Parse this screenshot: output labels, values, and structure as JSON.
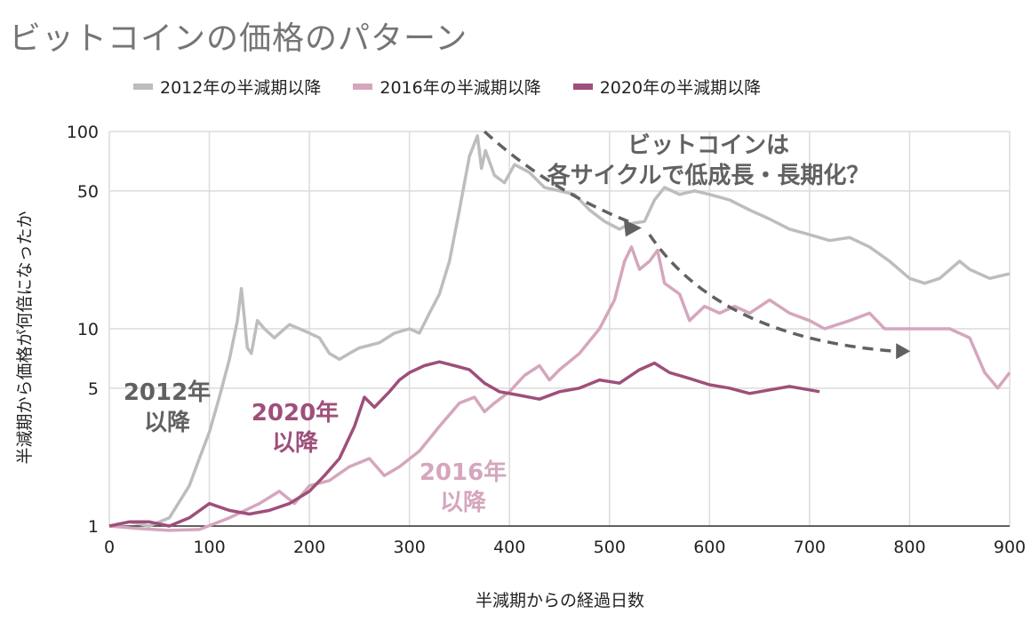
{
  "title": "ビットコインの価格のパターン",
  "legend": [
    {
      "label": "2012年の半減期以降",
      "color": "#bdbdbd"
    },
    {
      "label": "2016年の半減期以降",
      "color": "#d5a6bd"
    },
    {
      "label": "2020年の半減期以降",
      "color": "#9e4f7a"
    }
  ],
  "chart_data": {
    "type": "line",
    "title": "ビットコインの価格のパターン",
    "xlabel": "半減期からの経過日数",
    "ylabel": "半減期から価格が何倍になったか",
    "xlim": [
      0,
      900
    ],
    "ylim": [
      1,
      100
    ],
    "yscale": "log",
    "x_ticks": [
      0,
      100,
      200,
      300,
      400,
      500,
      600,
      700,
      800,
      900
    ],
    "y_ticks": [
      1,
      5,
      10,
      50,
      100
    ],
    "grid": true,
    "legend_position": "top",
    "series": [
      {
        "name": "2012年の半減期以降",
        "color": "#bdbdbd",
        "points": [
          [
            0,
            1
          ],
          [
            20,
            1.05
          ],
          [
            40,
            1.0
          ],
          [
            60,
            1.1
          ],
          [
            80,
            1.6
          ],
          [
            90,
            2.2
          ],
          [
            100,
            3.0
          ],
          [
            110,
            4.5
          ],
          [
            120,
            7
          ],
          [
            128,
            11
          ],
          [
            132,
            16
          ],
          [
            138,
            8
          ],
          [
            142,
            7.5
          ],
          [
            148,
            11
          ],
          [
            155,
            10
          ],
          [
            165,
            9
          ],
          [
            180,
            10.5
          ],
          [
            190,
            10
          ],
          [
            200,
            9.5
          ],
          [
            210,
            9
          ],
          [
            220,
            7.5
          ],
          [
            230,
            7
          ],
          [
            240,
            7.5
          ],
          [
            250,
            8
          ],
          [
            270,
            8.5
          ],
          [
            285,
            9.5
          ],
          [
            300,
            10
          ],
          [
            310,
            9.5
          ],
          [
            320,
            12
          ],
          [
            330,
            15
          ],
          [
            340,
            22
          ],
          [
            350,
            40
          ],
          [
            360,
            75
          ],
          [
            368,
            95
          ],
          [
            372,
            65
          ],
          [
            376,
            80
          ],
          [
            385,
            60
          ],
          [
            395,
            55
          ],
          [
            405,
            68
          ],
          [
            420,
            62
          ],
          [
            435,
            52
          ],
          [
            450,
            50
          ],
          [
            465,
            48
          ],
          [
            480,
            40
          ],
          [
            495,
            35
          ],
          [
            510,
            32
          ],
          [
            520,
            34
          ],
          [
            535,
            35
          ],
          [
            545,
            45
          ],
          [
            555,
            52
          ],
          [
            570,
            48
          ],
          [
            585,
            50
          ],
          [
            600,
            48
          ],
          [
            620,
            45
          ],
          [
            640,
            40
          ],
          [
            660,
            36
          ],
          [
            680,
            32
          ],
          [
            700,
            30
          ],
          [
            720,
            28
          ],
          [
            740,
            29
          ],
          [
            760,
            26
          ],
          [
            780,
            22
          ],
          [
            800,
            18
          ],
          [
            815,
            17
          ],
          [
            830,
            18
          ],
          [
            850,
            22
          ],
          [
            860,
            20
          ],
          [
            880,
            18
          ],
          [
            900,
            19
          ]
        ]
      },
      {
        "name": "2016年の半減期以降",
        "color": "#d5a6bd",
        "points": [
          [
            0,
            1
          ],
          [
            30,
            0.97
          ],
          [
            60,
            0.95
          ],
          [
            90,
            0.96
          ],
          [
            120,
            1.1
          ],
          [
            150,
            1.3
          ],
          [
            170,
            1.5
          ],
          [
            185,
            1.3
          ],
          [
            200,
            1.6
          ],
          [
            220,
            1.7
          ],
          [
            240,
            2.0
          ],
          [
            260,
            2.2
          ],
          [
            275,
            1.8
          ],
          [
            290,
            2.0
          ],
          [
            310,
            2.4
          ],
          [
            330,
            3.2
          ],
          [
            350,
            4.2
          ],
          [
            365,
            4.5
          ],
          [
            375,
            3.8
          ],
          [
            385,
            4.2
          ],
          [
            400,
            4.8
          ],
          [
            415,
            5.8
          ],
          [
            430,
            6.5
          ],
          [
            440,
            5.5
          ],
          [
            450,
            6.2
          ],
          [
            470,
            7.5
          ],
          [
            490,
            10
          ],
          [
            505,
            14
          ],
          [
            515,
            22
          ],
          [
            522,
            26
          ],
          [
            530,
            20
          ],
          [
            540,
            22
          ],
          [
            548,
            25
          ],
          [
            555,
            17
          ],
          [
            570,
            15
          ],
          [
            580,
            11
          ],
          [
            595,
            13
          ],
          [
            610,
            12
          ],
          [
            625,
            13
          ],
          [
            640,
            12
          ],
          [
            660,
            14
          ],
          [
            680,
            12
          ],
          [
            700,
            11
          ],
          [
            715,
            10
          ],
          [
            740,
            11
          ],
          [
            760,
            12
          ],
          [
            775,
            10
          ],
          [
            795,
            10
          ],
          [
            815,
            10
          ],
          [
            840,
            10
          ],
          [
            860,
            9
          ],
          [
            875,
            6
          ],
          [
            888,
            5
          ],
          [
            900,
            6
          ]
        ]
      },
      {
        "name": "2020年の半減期以降",
        "color": "#9e4f7a",
        "points": [
          [
            0,
            1
          ],
          [
            20,
            1.05
          ],
          [
            40,
            1.05
          ],
          [
            60,
            1.0
          ],
          [
            80,
            1.1
          ],
          [
            100,
            1.3
          ],
          [
            120,
            1.2
          ],
          [
            140,
            1.15
          ],
          [
            160,
            1.2
          ],
          [
            180,
            1.3
          ],
          [
            200,
            1.5
          ],
          [
            215,
            1.8
          ],
          [
            230,
            2.2
          ],
          [
            245,
            3.2
          ],
          [
            255,
            4.5
          ],
          [
            265,
            4.0
          ],
          [
            280,
            4.8
          ],
          [
            290,
            5.5
          ],
          [
            300,
            6.0
          ],
          [
            315,
            6.5
          ],
          [
            330,
            6.8
          ],
          [
            345,
            6.5
          ],
          [
            360,
            6.2
          ],
          [
            375,
            5.3
          ],
          [
            390,
            4.8
          ],
          [
            410,
            4.6
          ],
          [
            430,
            4.4
          ],
          [
            450,
            4.8
          ],
          [
            470,
            5.0
          ],
          [
            490,
            5.5
          ],
          [
            510,
            5.3
          ],
          [
            530,
            6.2
          ],
          [
            545,
            6.7
          ],
          [
            560,
            6.0
          ],
          [
            580,
            5.6
          ],
          [
            600,
            5.2
          ],
          [
            620,
            5.0
          ],
          [
            640,
            4.7
          ],
          [
            660,
            4.9
          ],
          [
            680,
            5.1
          ],
          [
            700,
            4.9
          ],
          [
            710,
            4.8
          ]
        ]
      }
    ],
    "annotations": [
      {
        "text": "2012年",
        "subtext": "以降",
        "color": "#616161"
      },
      {
        "text": "2020年",
        "subtext": "以降",
        "color": "#9e4f7a"
      },
      {
        "text": "2016年",
        "subtext": "以降",
        "color": "#d5a6bd"
      },
      {
        "text": "ビットコインは",
        "subtext": "各サイクルで低成長・長期化？",
        "color": "#616161"
      }
    ]
  }
}
